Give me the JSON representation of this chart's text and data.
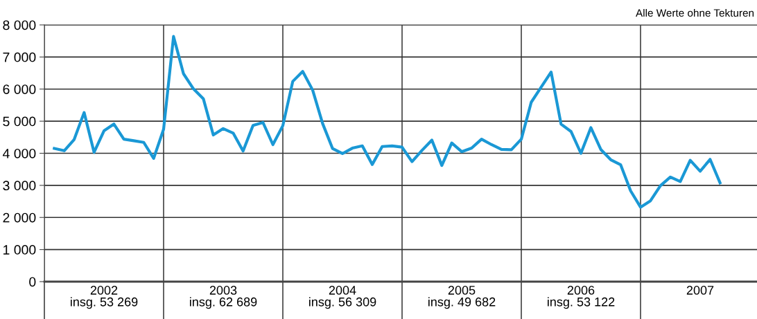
{
  "chart_data": {
    "type": "line",
    "annotations": [
      "Alle Werte ohne Tekturen"
    ],
    "x": [
      "2002-01",
      "2002-02",
      "2002-03",
      "2002-04",
      "2002-05",
      "2002-06",
      "2002-07",
      "2002-08",
      "2002-09",
      "2002-10",
      "2002-11",
      "2002-12",
      "2003-01",
      "2003-02",
      "2003-03",
      "2003-04",
      "2003-05",
      "2003-06",
      "2003-07",
      "2003-08",
      "2003-09",
      "2003-10",
      "2003-11",
      "2003-12",
      "2004-01",
      "2004-02",
      "2004-03",
      "2004-04",
      "2004-05",
      "2004-06",
      "2004-07",
      "2004-08",
      "2004-09",
      "2004-10",
      "2004-11",
      "2004-12",
      "2005-01",
      "2005-02",
      "2005-03",
      "2005-04",
      "2005-05",
      "2005-06",
      "2005-07",
      "2005-08",
      "2005-09",
      "2005-10",
      "2005-11",
      "2005-12",
      "2006-01",
      "2006-02",
      "2006-03",
      "2006-04",
      "2006-05",
      "2006-06",
      "2006-07",
      "2006-08",
      "2006-09",
      "2006-10",
      "2006-11",
      "2006-12",
      "2007-01",
      "2007-02",
      "2007-03",
      "2007-04",
      "2007-05",
      "2007-06",
      "2007-07",
      "2007-08"
    ],
    "series": [
      {
        "color": "#1a98d5",
        "values": [
          4150,
          4080,
          4430,
          5270,
          4030,
          4700,
          4910,
          4440,
          4390,
          4340,
          3840,
          4750,
          7640,
          6480,
          6010,
          5700,
          4570,
          4770,
          4630,
          4070,
          4870,
          4960,
          4270,
          4860,
          6240,
          6550,
          5970,
          4930,
          4150,
          3990,
          4160,
          4230,
          3650,
          4210,
          4230,
          4190,
          3740,
          4090,
          4410,
          3620,
          4320,
          4050,
          4160,
          4440,
          4270,
          4120,
          4110,
          4440,
          5590,
          6060,
          6530,
          4910,
          4680,
          4000,
          4800,
          4120,
          3800,
          3640,
          2830,
          2320,
          2520,
          2990,
          3260,
          3120,
          3780,
          3440,
          3810,
          3080
        ]
      }
    ],
    "xlim": [
      "2001-12",
      "2007-12"
    ],
    "xticks": [
      {
        "value": "2001-12",
        "label": null
      },
      {
        "value": "2002-12",
        "label": null
      },
      {
        "value": "2003-12",
        "label": null
      },
      {
        "value": "2004-12",
        "label": null
      },
      {
        "value": "2005-12",
        "label": null
      },
      {
        "value": "2006-12",
        "label": null
      },
      {
        "value": "2002-06",
        "label": "2002\ninsg. 53 269"
      },
      {
        "value": "2003-06",
        "label": "2003\ninsg. 62 689"
      },
      {
        "value": "2004-06",
        "label": "2004\ninsg. 56 309"
      },
      {
        "value": "2005-06",
        "label": "2005\ninsg. 49 682"
      },
      {
        "value": "2006-06",
        "label": "2006\ninsg. 53 122"
      },
      {
        "value": "2007-06",
        "label": "2007"
      }
    ],
    "ylim": [
      0,
      8000
    ],
    "yticks": [
      0,
      {
        "value": 1000,
        "label": "1 000"
      },
      {
        "value": 2000,
        "label": "2 000"
      },
      {
        "value": 3000,
        "label": "3 000"
      },
      {
        "value": 4000,
        "label": "4 000"
      },
      {
        "value": 5000,
        "label": "5 000"
      },
      {
        "value": 6000,
        "label": "6 000"
      },
      {
        "value": 7000,
        "label": "7 000"
      },
      {
        "value": 8000,
        "label": "8 000"
      }
    ],
    "grid": true,
    "marker": "none",
    "line_style": "solid"
  }
}
